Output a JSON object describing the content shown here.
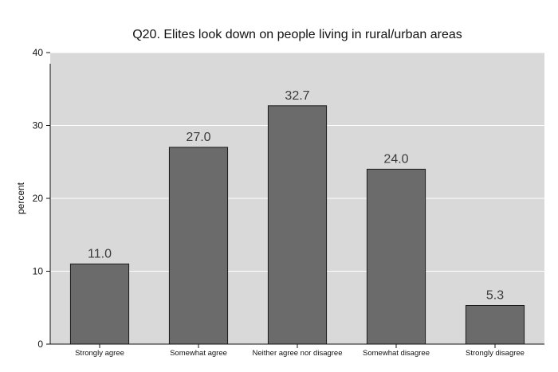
{
  "chart_data": {
    "type": "bar",
    "title": "Q20. Elites look down on people living in rural/urban areas",
    "xlabel": "",
    "ylabel": "percent",
    "categories": [
      "Strongly agree",
      "Somewhat agree",
      "Neither agree nor disagree",
      "Somewhat disagree",
      "Strongly disagree"
    ],
    "values": [
      11.0,
      27.0,
      32.7,
      24.0,
      5.3
    ],
    "value_labels": [
      "11.0",
      "27.0",
      "32.7",
      "24.0",
      "5.3"
    ],
    "ylim": [
      0,
      40
    ],
    "yticks": [
      0,
      10,
      20,
      30,
      40
    ],
    "ytick_labels": [
      "0",
      "10",
      "20",
      "30",
      "40"
    ],
    "grid": true,
    "colors": {
      "plot_background": "#d9d9d9",
      "bar_fill": "#6b6b6b",
      "bar_edge": "#1a1a1a",
      "gridline": "#ffffff"
    }
  }
}
